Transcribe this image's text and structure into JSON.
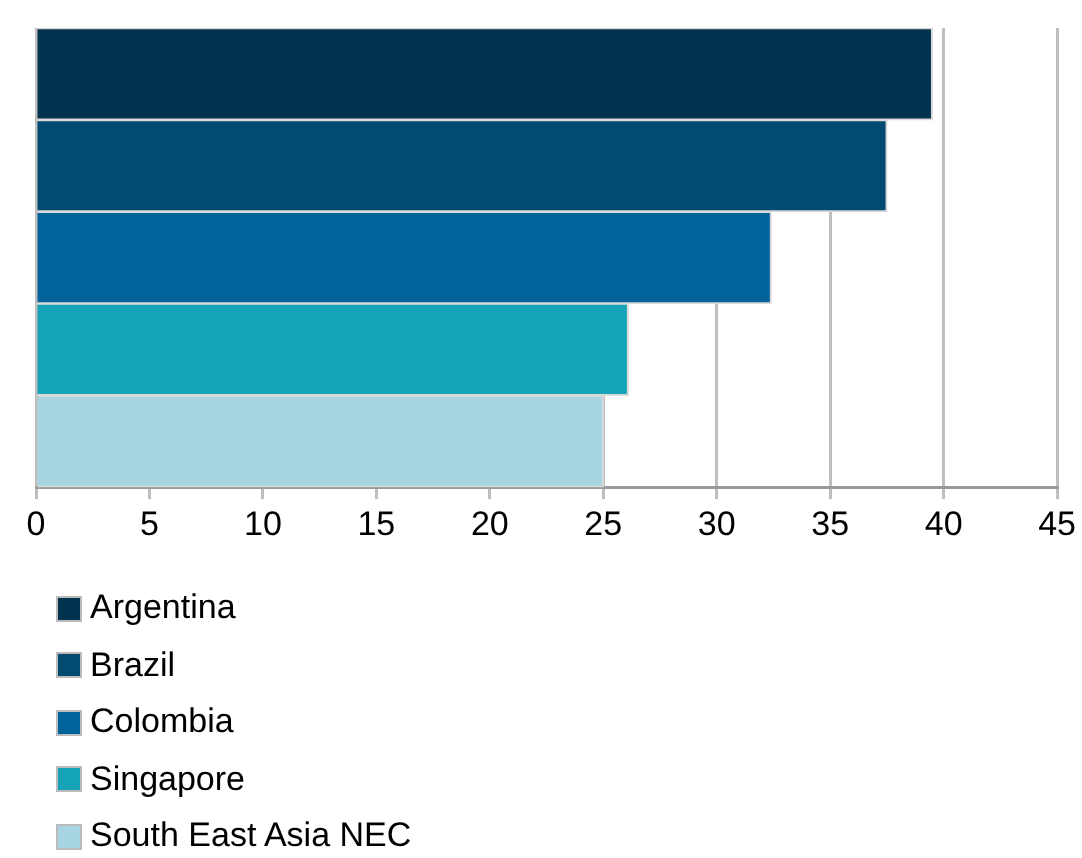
{
  "chart_data": {
    "type": "bar",
    "orientation": "horizontal",
    "categories": [
      null,
      null,
      null,
      null,
      null
    ],
    "series": [
      {
        "name": "Argentina",
        "color": "#03324f",
        "values": [
          39.5,
          null,
          null,
          null,
          null
        ]
      },
      {
        "name": "Brazil",
        "color": "#014a70",
        "values": [
          null,
          37.5,
          null,
          null,
          null
        ]
      },
      {
        "name": "Colombia",
        "color": "#02639a",
        "values": [
          null,
          null,
          32.4,
          null,
          null
        ]
      },
      {
        "name": "Singapore",
        "color": "#15a3b8",
        "values": [
          null,
          null,
          null,
          26.1,
          null
        ]
      },
      {
        "name": "South East Asia NEC",
        "color": "#a7d6e2",
        "values": [
          null,
          null,
          null,
          null,
          25
        ]
      }
    ],
    "xlim": [
      0,
      45
    ],
    "xticks": [
      0,
      5,
      10,
      15,
      20,
      25,
      30,
      35,
      40,
      45
    ],
    "grid": "x",
    "legend": "bottom left"
  }
}
